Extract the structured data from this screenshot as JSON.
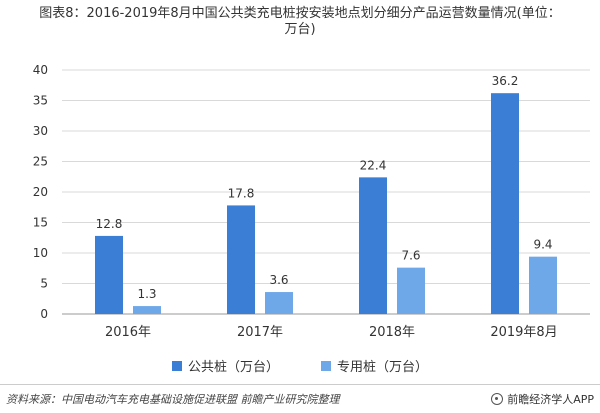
{
  "title_line1": "图表8：2016-2019年8月中国公共类充电桩按安装地点划分细分产品运营数量情况(单位：",
  "title_line2": "万台)",
  "source": "资料来源：中国电动汽车充电基础设施促进联盟 前瞻产业研究院整理",
  "brand": "前瞻经济学人APP",
  "colors": {
    "public": "#3a7fd5",
    "private": "#6fa8e8",
    "grid": "#d9d9d9",
    "axis": "#999999"
  },
  "chart_data": {
    "type": "bar",
    "categories": [
      "2016年",
      "2017年",
      "2018年",
      "2019年8月"
    ],
    "series": [
      {
        "name": "公共桩（万台）",
        "values": [
          12.8,
          17.8,
          22.4,
          36.2
        ]
      },
      {
        "name": "专用桩（万台）",
        "values": [
          1.3,
          3.6,
          7.6,
          9.4
        ]
      }
    ],
    "ylim": [
      0,
      40
    ],
    "yticks": [
      0,
      5,
      10,
      15,
      20,
      25,
      30,
      35,
      40
    ],
    "grid": true,
    "legend": "bottom-center"
  }
}
